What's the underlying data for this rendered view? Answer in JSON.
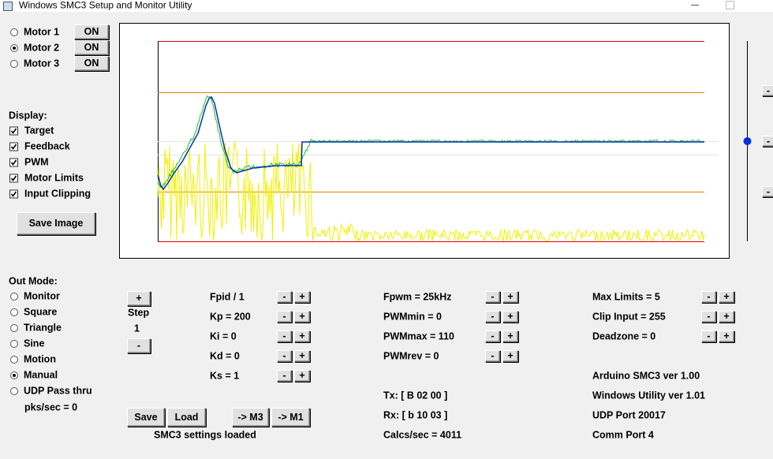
{
  "window": {
    "title": "Windows SMC3 Setup and Monitor Utility"
  },
  "motors": [
    {
      "label": "Motor 1",
      "button": "ON",
      "selected": false
    },
    {
      "label": "Motor 2",
      "button": "ON",
      "selected": true
    },
    {
      "label": "Motor 3",
      "button": "ON",
      "selected": false
    }
  ],
  "display": {
    "heading": "Display:",
    "options": [
      {
        "label": "Target",
        "checked": true
      },
      {
        "label": "Feedback",
        "checked": true
      },
      {
        "label": "PWM",
        "checked": true
      },
      {
        "label": "Motor Limits",
        "checked": true
      },
      {
        "label": "Input Clipping",
        "checked": true
      }
    ],
    "save_image": "Save Image"
  },
  "out_mode": {
    "heading": "Out Mode:",
    "options": [
      {
        "label": "Monitor",
        "selected": false
      },
      {
        "label": "Square",
        "selected": false
      },
      {
        "label": "Triangle",
        "selected": false
      },
      {
        "label": "Sine",
        "selected": false
      },
      {
        "label": "Motion",
        "selected": false
      },
      {
        "label": "Manual",
        "selected": true
      },
      {
        "label": "UDP Pass thru",
        "selected": false
      }
    ],
    "rate": "pks/sec = 0"
  },
  "step": {
    "plus": "+",
    "label": "Step",
    "value": "1",
    "minus": "-"
  },
  "pid": [
    "Fpid / 1",
    "Kp = 200",
    "Ki = 0",
    "Kd = 0",
    "Ks = 1"
  ],
  "pwm": [
    "Fpwm = 25kHz",
    "PWMmin = 0",
    "PWMmax = 110",
    "PWMrev = 0"
  ],
  "limits": [
    "Max Limits = 5",
    "Clip Input = 255",
    "Deadzone = 0"
  ],
  "comm": [
    "Tx: [ B 02 00 ]",
    "Rx: [ b 10 03 ]",
    "Calcs/sec = 4011"
  ],
  "info": [
    "Arduino SMC3 ver 1.00",
    "Windows Utility ver 1.01",
    "UDP Port 20017",
    "Comm Port 4"
  ],
  "buttons": {
    "minus": "-",
    "plus": "+",
    "save": "Save",
    "load": "Load",
    "to_m3": "-> M3",
    "to_m1": "-> M1"
  },
  "status": "SMC3 settings loaded"
}
